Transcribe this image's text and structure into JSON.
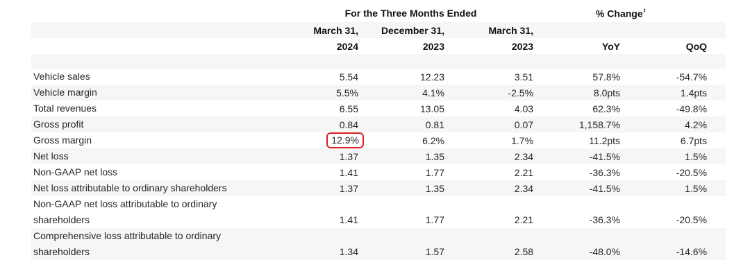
{
  "table": {
    "group_headers": {
      "months_ended": "For the Three Months Ended",
      "pct_change": "% Change",
      "pct_change_superscript": "i"
    },
    "column_headers": {
      "col1_line1": "March 31,",
      "col1_line2": "2024",
      "col2_line1": "December 31,",
      "col2_line2": "2023",
      "col3_line1": "March 31,",
      "col3_line2": "2023",
      "col4_label": "YoY",
      "col5_label": "QoQ"
    },
    "rows": [
      {
        "label_lines": [
          "Vehicle sales"
        ],
        "values": [
          "5.54",
          "12.23",
          "3.51",
          "57.8%",
          "-54.7%"
        ],
        "highlight_col": null
      },
      {
        "label_lines": [
          "Vehicle margin"
        ],
        "values": [
          "5.5%",
          "4.1%",
          "-2.5%",
          "8.0pts",
          "1.4pts"
        ],
        "highlight_col": null
      },
      {
        "label_lines": [
          "Total revenues"
        ],
        "values": [
          "6.55",
          "13.05",
          "4.03",
          "62.3%",
          "-49.8%"
        ],
        "highlight_col": null
      },
      {
        "label_lines": [
          "Gross profit"
        ],
        "values": [
          "0.84",
          "0.81",
          "0.07",
          "1,158.7%",
          "4.2%"
        ],
        "highlight_col": null
      },
      {
        "label_lines": [
          "Gross margin"
        ],
        "values": [
          "12.9%",
          "6.2%",
          "1.7%",
          "11.2pts",
          "6.7pts"
        ],
        "highlight_col": 0
      },
      {
        "label_lines": [
          "Net loss"
        ],
        "values": [
          "1.37",
          "1.35",
          "2.34",
          "-41.5%",
          "1.5%"
        ],
        "highlight_col": null
      },
      {
        "label_lines": [
          "Non-GAAP net loss"
        ],
        "values": [
          "1.41",
          "1.77",
          "2.21",
          "-36.3%",
          "-20.5%"
        ],
        "highlight_col": null
      },
      {
        "label_lines": [
          "Net loss attributable to ordinary shareholders"
        ],
        "values": [
          "1.37",
          "1.35",
          "2.34",
          "-41.5%",
          "1.5%"
        ],
        "highlight_col": null
      },
      {
        "label_lines": [
          "Non-GAAP net loss attributable to ordinary",
          "shareholders"
        ],
        "values": [
          "1.41",
          "1.77",
          "2.21",
          "-36.3%",
          "-20.5%"
        ],
        "highlight_col": null
      },
      {
        "label_lines": [
          "Comprehensive loss attributable to ordinary",
          "shareholders"
        ],
        "values": [
          "1.34",
          "1.57",
          "2.58",
          "-48.0%",
          "-14.6%"
        ],
        "highlight_col": null
      }
    ],
    "colors": {
      "band": "#f6f6f7",
      "highlight_border": "#dd1e25",
      "text": "#262626",
      "header_text": "#101010",
      "page_background": "#ffffff"
    }
  }
}
